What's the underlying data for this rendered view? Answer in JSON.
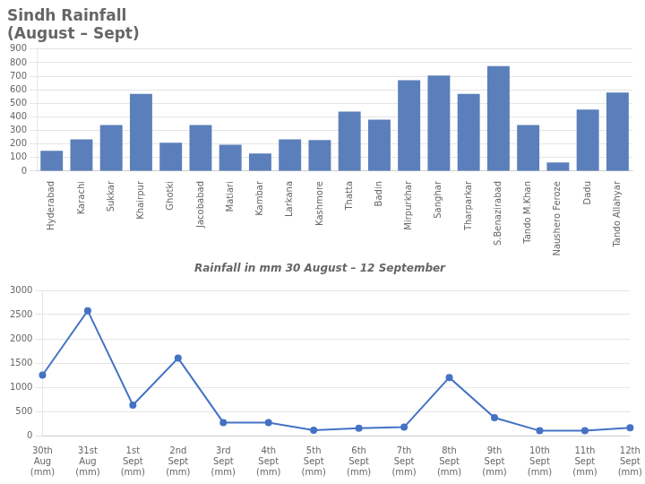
{
  "chart_data": [
    {
      "type": "bar",
      "title": "Sindh Rainfall\n(August – Sept)",
      "subtitle": "Rainfall in mm 30 August – 12 September",
      "categories": [
        "Hyderabad",
        "Karachi",
        "Sukkar",
        "Khairpur",
        "Ghotki",
        "Jacobabad",
        "Matiari",
        "Kambar",
        "Larkana",
        "Kashmore",
        "Thatta",
        "Badin",
        "Mirpurkhar",
        "Sanghar",
        "Tharparkar",
        "S.Benazirabad",
        "Tando M.Khan",
        "Naushero Feroze",
        "Dadu",
        "Tando Allahyar"
      ],
      "values": [
        150,
        235,
        340,
        570,
        210,
        340,
        195,
        130,
        235,
        230,
        440,
        380,
        670,
        705,
        570,
        775,
        340,
        65,
        455,
        580
      ],
      "color": "#5b7fba",
      "ylim": [
        0,
        900
      ],
      "yticks": [
        0,
        100,
        200,
        300,
        400,
        500,
        600,
        700,
        800,
        900
      ],
      "grid": true
    },
    {
      "type": "line",
      "categories": [
        "30th\nAug\n(mm)",
        "31st\nAug\n(mm)",
        "1st\nSept\n(mm)",
        "2nd\nSept\n(mm)",
        "3rd\nSept\n(mm)",
        "4th\nSept\n(mm)",
        "5th\nSept\n(mm)",
        "6th\nSept\n(mm)",
        "7th\nSept\n(mm)",
        "8th\nSept\n(mm)",
        "9th\nSept\n(mm)",
        "10th\nSept\n(mm)",
        "11th\nSept\n(mm)",
        "12th\nSept\n(mm)"
      ],
      "values": [
        1250,
        2580,
        630,
        1600,
        270,
        270,
        110,
        155,
        175,
        1200,
        370,
        100,
        100,
        160
      ],
      "color": "#4472c4",
      "marker": "o",
      "ylim": [
        0,
        3000
      ],
      "yticks": [
        0,
        500,
        1000,
        1500,
        2000,
        2500,
        3000
      ],
      "grid": true
    }
  ]
}
